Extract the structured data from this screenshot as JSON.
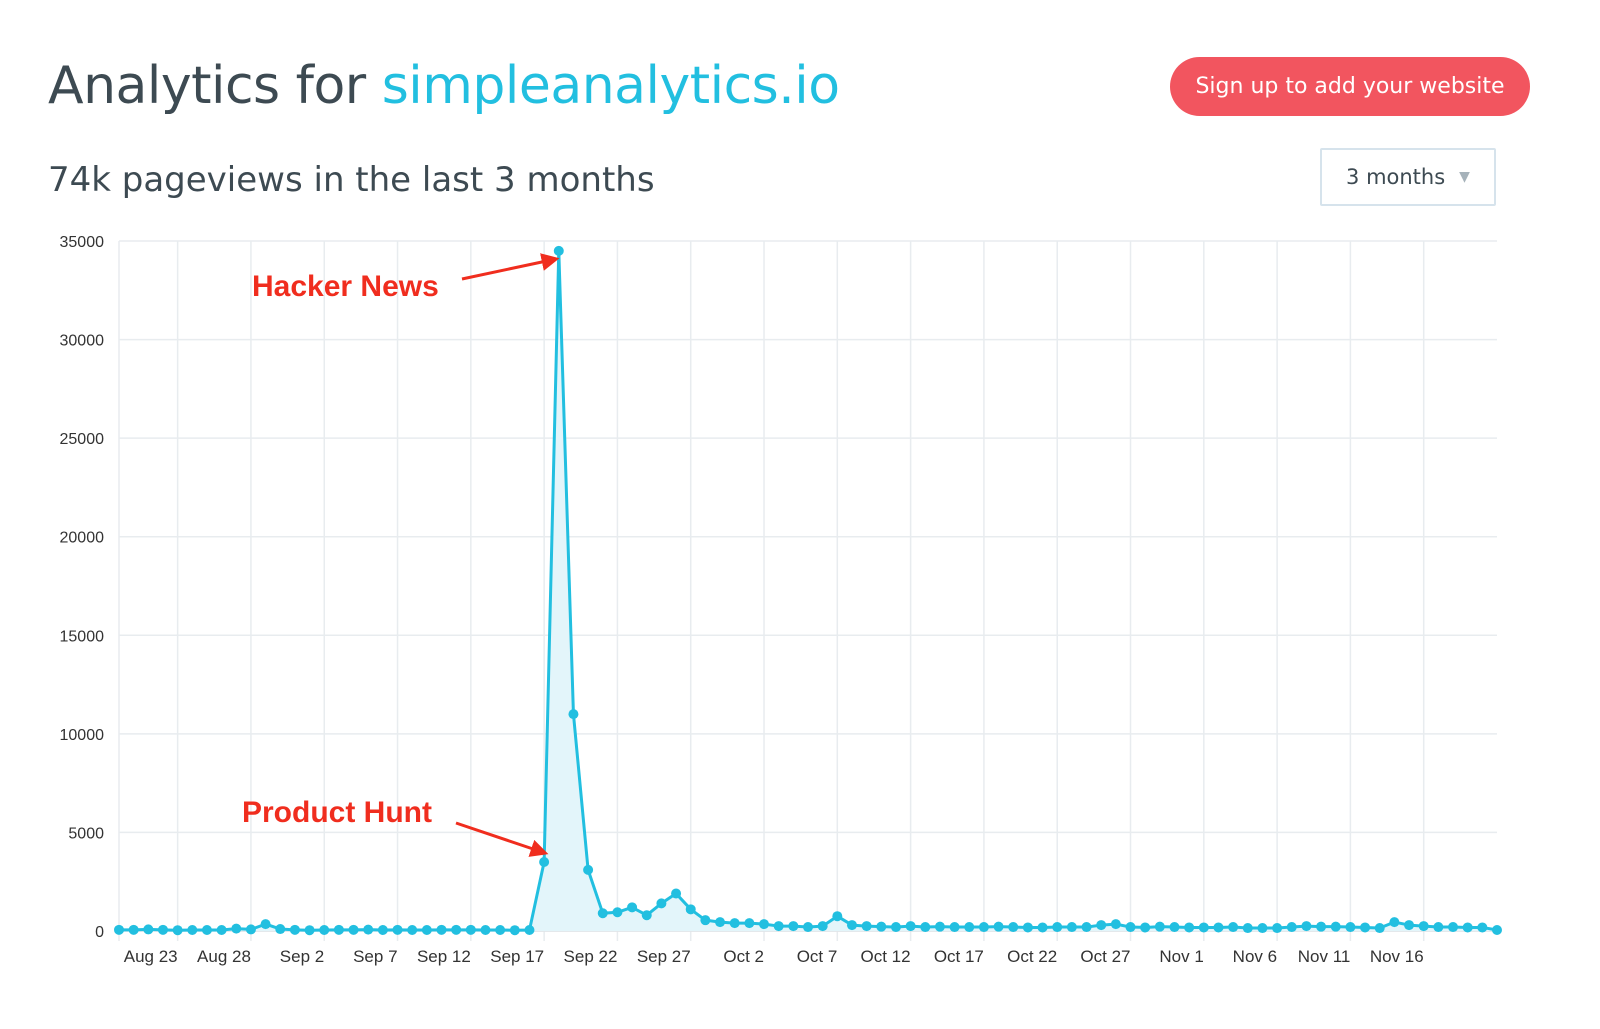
{
  "header": {
    "title_prefix": "Analytics for",
    "site": "simpleanalytics.io",
    "signup_label": "Sign up to add your website"
  },
  "summary": {
    "text": "74k pageviews in the last 3 months"
  },
  "range_select": {
    "value": "3 months",
    "caret": "▼"
  },
  "colors": {
    "line": "#22bfe0",
    "area": "#e3f5fa",
    "annotation": "#f02d1e",
    "button": "#f2555f"
  },
  "chart_data": {
    "type": "line",
    "title": "",
    "xlabel": "",
    "ylabel": "",
    "ylim": [
      0,
      35000
    ],
    "y_ticks": [
      0,
      5000,
      10000,
      15000,
      20000,
      25000,
      30000,
      35000
    ],
    "x_tick_labels": [
      "Aug 23",
      "Aug 28",
      "Sep 2",
      "Sep 7",
      "Sep 12",
      "Sep 17",
      "Sep 22",
      "Sep 27",
      "Oct 2",
      "Oct 7",
      "Oct 12",
      "Oct 17",
      "Oct 22",
      "Oct 27",
      "Nov 1",
      "Nov 6",
      "Nov 11",
      "Nov 16"
    ],
    "x_start": "Aug 19",
    "x_end": "Nov 18",
    "grid": true,
    "series": [
      {
        "values": [
          60,
          60,
          80,
          60,
          40,
          50,
          50,
          50,
          120,
          80,
          350,
          100,
          60,
          40,
          50,
          60,
          60,
          70,
          50,
          60,
          50,
          50,
          60,
          60,
          60,
          50,
          50,
          40,
          50,
          3500,
          34500,
          11000,
          3100,
          900,
          950,
          1200,
          800,
          1400,
          1900,
          1100,
          550,
          450,
          400,
          400,
          350,
          250,
          250,
          200,
          250,
          750,
          300,
          250,
          220,
          200,
          250,
          200,
          220,
          200,
          200,
          200,
          220,
          200,
          180,
          180,
          200,
          200,
          200,
          300,
          350,
          200,
          180,
          220,
          200,
          180,
          180,
          180,
          200,
          150,
          150,
          150,
          200,
          250,
          220,
          220,
          200,
          180,
          150,
          450,
          300,
          250,
          200,
          200,
          180,
          180,
          50
        ]
      }
    ],
    "annotations": [
      {
        "text": "Hacker News",
        "target": "Sep 18"
      },
      {
        "text": "Product Hunt",
        "target": "Sep 17"
      }
    ]
  }
}
